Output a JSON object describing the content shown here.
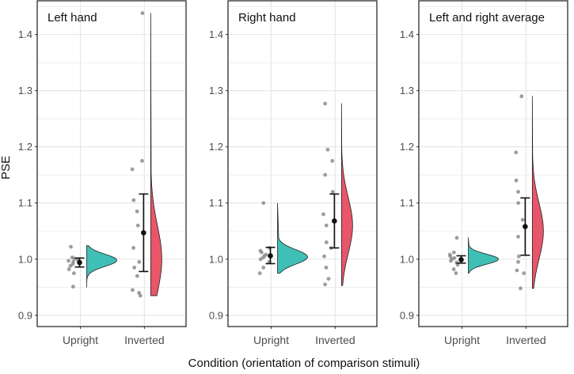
{
  "figure": {
    "ylabel": "PSE",
    "xlabel": "Condition (orientation of comparison stimuli)"
  },
  "colors": {
    "upright": "#40bfb6",
    "inverted": "#e8566a",
    "point": "#8c8c8c",
    "summary": "#111111",
    "grid": "#e5e5e5",
    "frame": "#1a1a1a"
  },
  "chart_data": [
    {
      "type": "raincloud",
      "title": "Left hand",
      "categories": [
        "Upright",
        "Inverted"
      ],
      "ylim": [
        0.88,
        1.46
      ],
      "yticks": [
        0.9,
        1.0,
        1.1,
        1.2,
        1.3,
        1.4
      ],
      "ytick_labels": [
        "0.9",
        "1.0",
        "1.1",
        "1.2",
        "1.3",
        "1.4"
      ],
      "series": [
        {
          "name": "Upright",
          "mean": 0.994,
          "ci_low": 0.986,
          "ci_high": 1.002,
          "points": [
            0.951,
            0.975,
            0.982,
            0.988,
            0.991,
            0.995,
            0.997,
            0.999,
            1.001,
            1.003,
            1.022
          ],
          "density": {
            "min": 0.95,
            "max": 1.024,
            "peak": 0.998,
            "bw": 0.011
          }
        },
        {
          "name": "Inverted",
          "mean": 1.047,
          "ci_low": 0.978,
          "ci_high": 1.116,
          "points": [
            0.935,
            0.94,
            0.945,
            0.97,
            0.985,
            0.995,
            1.02,
            1.06,
            1.085,
            1.105,
            1.16,
            1.175,
            1.438
          ],
          "density": {
            "min": 0.935,
            "max": 1.438,
            "peak": 1.0,
            "bw": 0.06
          }
        }
      ]
    },
    {
      "type": "raincloud",
      "title": "Right hand",
      "categories": [
        "Upright",
        "Inverted"
      ],
      "ylim": [
        0.88,
        1.46
      ],
      "yticks": [
        0.9,
        1.0,
        1.1,
        1.2,
        1.3,
        1.4
      ],
      "ytick_labels": [
        "0.9",
        "1.0",
        "1.1",
        "1.2",
        "1.3",
        "1.4"
      ],
      "series": [
        {
          "name": "Upright",
          "mean": 1.006,
          "ci_low": 0.992,
          "ci_high": 1.021,
          "points": [
            0.975,
            0.985,
            0.995,
            1.0,
            1.003,
            1.006,
            1.008,
            1.012,
            1.015,
            1.02,
            1.1
          ],
          "density": {
            "min": 0.975,
            "max": 1.1,
            "peak": 1.004,
            "bw": 0.013
          }
        },
        {
          "name": "Inverted",
          "mean": 1.068,
          "ci_low": 1.02,
          "ci_high": 1.116,
          "points": [
            0.955,
            0.965,
            0.985,
            1.005,
            1.02,
            1.03,
            1.06,
            1.08,
            1.12,
            1.15,
            1.175,
            1.195,
            1.277
          ],
          "density": {
            "min": 0.953,
            "max": 1.277,
            "peak": 1.06,
            "bw": 0.05
          }
        }
      ]
    },
    {
      "type": "raincloud",
      "title": "Left and right average",
      "categories": [
        "Upright",
        "Inverted"
      ],
      "ylim": [
        0.88,
        1.46
      ],
      "yticks": [
        0.9,
        1.0,
        1.1,
        1.2,
        1.3,
        1.4
      ],
      "ytick_labels": [
        "0.9",
        "1.0",
        "1.1",
        "1.2",
        "1.3",
        "1.4"
      ],
      "series": [
        {
          "name": "Upright",
          "mean": 0.999,
          "ci_low": 0.993,
          "ci_high": 1.006,
          "points": [
            0.975,
            0.982,
            0.99,
            0.994,
            0.997,
            1.0,
            1.002,
            1.005,
            1.008,
            1.012,
            1.038
          ],
          "density": {
            "min": 0.975,
            "max": 1.038,
            "peak": 1.0,
            "bw": 0.009
          }
        },
        {
          "name": "Inverted",
          "mean": 1.058,
          "ci_low": 1.007,
          "ci_high": 1.109,
          "points": [
            0.948,
            0.975,
            0.98,
            0.995,
            1.005,
            1.04,
            1.07,
            1.1,
            1.12,
            1.14,
            1.19,
            1.29
          ],
          "density": {
            "min": 0.948,
            "max": 1.29,
            "peak": 1.05,
            "bw": 0.05
          }
        }
      ]
    }
  ]
}
